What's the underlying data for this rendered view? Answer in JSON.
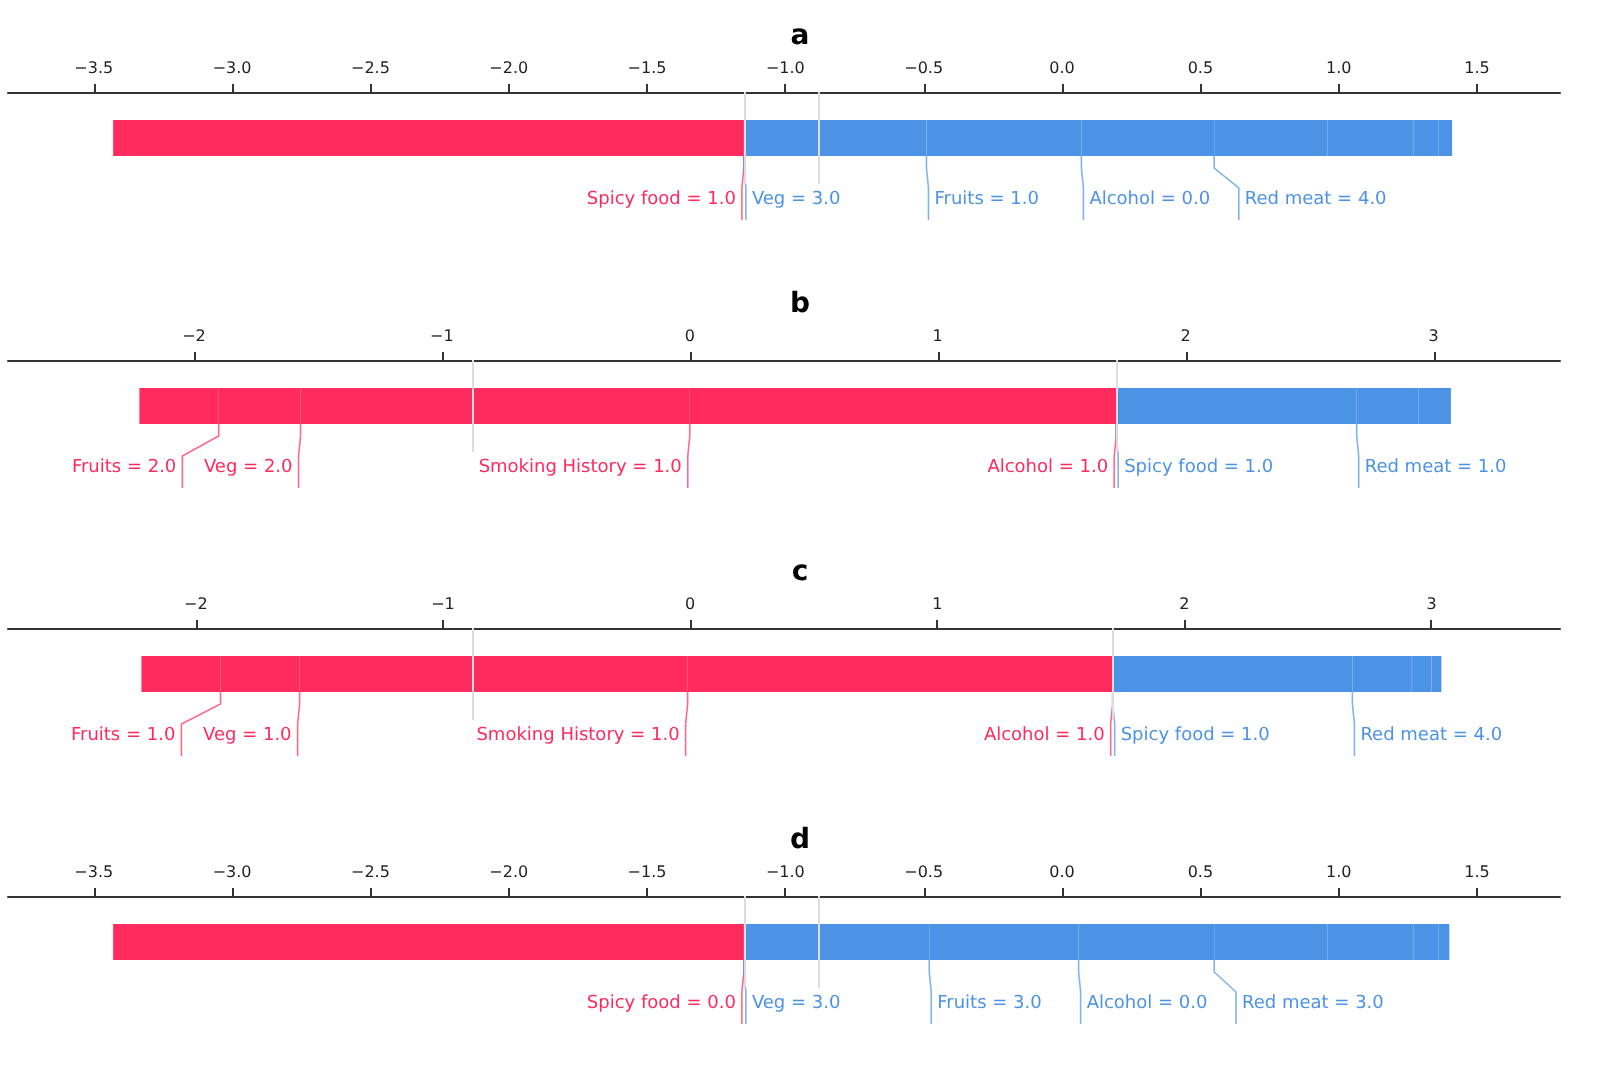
{
  "chart_data": [
    {
      "type": "bar",
      "title": "a",
      "orientation": "horizontal",
      "categories": [
        null
      ],
      "legend": false,
      "grid": false,
      "xlim": [
        -3.81,
        1.8
      ],
      "xticks": [
        {
          "value": -3.5,
          "label": "−3.5"
        },
        {
          "value": -3,
          "label": "−3.0"
        },
        {
          "value": -2.5,
          "label": "−2.5"
        },
        {
          "value": -2,
          "label": "−2.0"
        },
        {
          "value": -1.5,
          "label": "−1.5"
        },
        {
          "value": -1,
          "label": "−1.0"
        },
        {
          "value": -0.5,
          "label": "−0.5"
        },
        {
          "value": 0,
          "label": "0.0"
        },
        {
          "value": 0.5,
          "label": "0.5"
        },
        {
          "value": 1,
          "label": "1.0"
        },
        {
          "value": 1.5,
          "label": "1.5"
        }
      ],
      "ref_lines": [
        {
          "axis": "x",
          "value": -0.88,
          "color": "#dddddd"
        },
        {
          "axis": "x",
          "value": -1.15,
          "color": "#dddddd"
        }
      ],
      "series": [
        {
          "name": "Spicy food = 1.0",
          "color": "#ff2a5d",
          "base": [
            -3.43
          ],
          "values": [
            2.28
          ]
        },
        {
          "name": "Veg = 3.0",
          "color": "#4c93e6",
          "base": [
            -1.15
          ],
          "values": [
            0.66
          ]
        },
        {
          "name": "Fruits = 1.0",
          "color": "#4c93e6",
          "base": [
            -0.49
          ],
          "values": [
            0.56
          ]
        },
        {
          "name": "Alcohol = 0.0",
          "color": "#4c93e6",
          "base": [
            0.07
          ],
          "values": [
            0.48
          ]
        },
        {
          "name": "Red meat = 4.0",
          "color": "#4c93e6",
          "base": [
            0.55
          ],
          "values": [
            0.41
          ]
        },
        {
          "color": "#4c93e6",
          "base": [
            0.96
          ],
          "values": [
            0.31
          ]
        },
        {
          "color": "#4c93e6",
          "base": [
            1.27
          ],
          "values": [
            0.09
          ]
        },
        {
          "color": "#4c93e6",
          "base": [
            1.36
          ],
          "values": [
            0.05
          ]
        }
      ]
    },
    {
      "type": "bar",
      "title": "b",
      "orientation": "horizontal",
      "categories": [
        null
      ],
      "legend": false,
      "grid": false,
      "xlim": [
        -2.75,
        3.51
      ],
      "xticks": [
        {
          "value": -2,
          "label": "−2"
        },
        {
          "value": -1,
          "label": "−1"
        },
        0,
        1,
        2,
        3
      ],
      "ref_lines": [
        {
          "axis": "x",
          "value": -0.88,
          "color": "#dddddd"
        },
        {
          "axis": "x",
          "value": 1.72,
          "color": "#dddddd"
        }
      ],
      "series": [
        {
          "name": "Fruits = 2.0",
          "color": "#ff2a5d",
          "base": [
            -2.22
          ],
          "values": [
            0.32
          ]
        },
        {
          "name": "Veg = 2.0",
          "color": "#ff2a5d",
          "base": [
            -1.9
          ],
          "values": [
            0.33
          ]
        },
        {
          "name": "Smoking History = 1.0",
          "color": "#ff2a5d",
          "base": [
            -1.57
          ],
          "values": [
            1.57
          ]
        },
        {
          "name": "Alcohol = 1.0",
          "color": "#ff2a5d",
          "base": [
            0
          ],
          "values": [
            1.72
          ]
        },
        {
          "name": "Spicy food = 1.0",
          "color": "#4c93e6",
          "base": [
            1.72
          ],
          "values": [
            0.97
          ]
        },
        {
          "name": "Red meat = 1.0",
          "color": "#4c93e6",
          "base": [
            2.69
          ],
          "values": [
            0.25
          ]
        },
        {
          "color": "#4c93e6",
          "base": [
            2.94
          ],
          "values": [
            0.09
          ]
        },
        {
          "color": "#4c93e6",
          "base": [
            3.03
          ],
          "values": [
            0.04
          ]
        }
      ]
    },
    {
      "type": "bar",
      "title": "c",
      "orientation": "horizontal",
      "categories": [
        null
      ],
      "legend": false,
      "grid": false,
      "xlim": [
        -2.76,
        3.52
      ],
      "xticks": [
        {
          "value": -2,
          "label": "−2"
        },
        {
          "value": -1,
          "label": "−1"
        },
        0,
        1,
        2,
        3
      ],
      "ref_lines": [
        {
          "axis": "x",
          "value": -0.88,
          "color": "#dddddd"
        },
        {
          "axis": "x",
          "value": 1.71,
          "color": "#dddddd"
        }
      ],
      "series": [
        {
          "name": "Fruits = 1.0",
          "color": "#ff2a5d",
          "base": [
            -2.22
          ],
          "values": [
            0.32
          ]
        },
        {
          "name": "Veg = 1.0",
          "color": "#ff2a5d",
          "base": [
            -1.9
          ],
          "values": [
            0.32
          ]
        },
        {
          "name": "Smoking History = 1.0",
          "color": "#ff2a5d",
          "base": [
            -1.58
          ],
          "values": [
            1.57
          ]
        },
        {
          "name": "Alcohol = 1.0",
          "color": "#ff2a5d",
          "base": [
            -0.01
          ],
          "values": [
            1.72
          ]
        },
        {
          "name": "Spicy food = 1.0",
          "color": "#4c93e6",
          "base": [
            1.71
          ],
          "values": [
            0.97
          ]
        },
        {
          "name": "Red meat = 4.0",
          "color": "#4c93e6",
          "base": [
            2.68
          ],
          "values": [
            0.24
          ]
        },
        {
          "color": "#4c93e6",
          "base": [
            2.92
          ],
          "values": [
            0.08
          ]
        },
        {
          "color": "#4c93e6",
          "base": [
            3.0
          ],
          "values": [
            0.04
          ]
        }
      ]
    },
    {
      "type": "bar",
      "title": "d",
      "orientation": "horizontal",
      "categories": [
        null
      ],
      "legend": false,
      "grid": false,
      "xlim": [
        -3.81,
        1.8
      ],
      "xticks": [
        {
          "value": -3.5,
          "label": "−3.5"
        },
        {
          "value": -3,
          "label": "−3.0"
        },
        {
          "value": -2.5,
          "label": "−2.5"
        },
        {
          "value": -2,
          "label": "−2.0"
        },
        {
          "value": -1.5,
          "label": "−1.5"
        },
        {
          "value": -1,
          "label": "−1.0"
        },
        {
          "value": -0.5,
          "label": "−0.5"
        },
        {
          "value": 0,
          "label": "0.0"
        },
        {
          "value": 0.5,
          "label": "0.5"
        },
        {
          "value": 1,
          "label": "1.0"
        },
        {
          "value": 1.5,
          "label": "1.5"
        }
      ],
      "ref_lines": [
        {
          "axis": "x",
          "value": -0.88,
          "color": "#dddddd"
        },
        {
          "axis": "x",
          "value": -1.15,
          "color": "#dddddd"
        }
      ],
      "series": [
        {
          "name": "Spicy food = 0.0",
          "color": "#ff2a5d",
          "base": [
            -3.43
          ],
          "values": [
            2.28
          ]
        },
        {
          "name": "Veg = 3.0",
          "color": "#4c93e6",
          "base": [
            -1.15
          ],
          "values": [
            0.67
          ]
        },
        {
          "name": "Fruits = 3.0",
          "color": "#4c93e6",
          "base": [
            -0.48
          ],
          "values": [
            0.54
          ]
        },
        {
          "name": "Alcohol = 0.0",
          "color": "#4c93e6",
          "base": [
            0.06
          ],
          "values": [
            0.49
          ]
        },
        {
          "name": "Red meat = 3.0",
          "color": "#4c93e6",
          "base": [
            0.55
          ],
          "values": [
            0.41
          ]
        },
        {
          "color": "#4c93e6",
          "base": [
            0.96
          ],
          "values": [
            0.31
          ]
        },
        {
          "color": "#4c93e6",
          "base": [
            1.27
          ],
          "values": [
            0.09
          ]
        },
        {
          "color": "#4c93e6",
          "base": [
            1.36
          ],
          "values": [
            0.04
          ]
        }
      ]
    }
  ]
}
